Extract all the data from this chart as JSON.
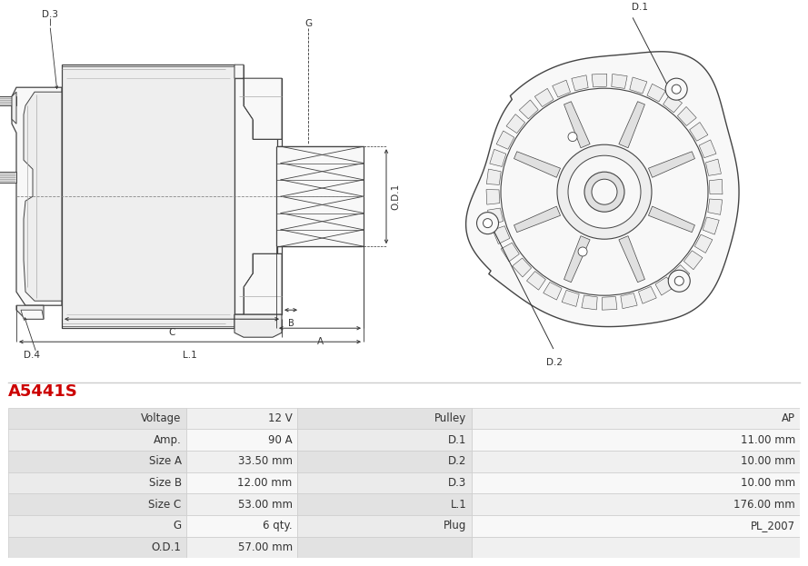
{
  "title": "A5441S",
  "title_color": "#cc0000",
  "bg_color": "#ffffff",
  "table_rows": [
    [
      "Voltage",
      "12 V",
      "Pulley",
      "AP"
    ],
    [
      "Amp.",
      "90 A",
      "D.1",
      "11.00 mm"
    ],
    [
      "Size A",
      "33.50 mm",
      "D.2",
      "10.00 mm"
    ],
    [
      "Size B",
      "12.00 mm",
      "D.3",
      "10.00 mm"
    ],
    [
      "Size C",
      "53.00 mm",
      "L.1",
      "176.00 mm"
    ],
    [
      "G",
      "6 qty.",
      "Plug",
      "PL_2007"
    ],
    [
      "O.D.1",
      "57.00 mm",
      "",
      ""
    ]
  ],
  "line_color": "#444444",
  "dim_color": "#333333",
  "text_color": "#333333",
  "fill_light": "#f8f8f8",
  "fill_mid": "#eeeeee",
  "fill_dark": "#e0e0e0"
}
